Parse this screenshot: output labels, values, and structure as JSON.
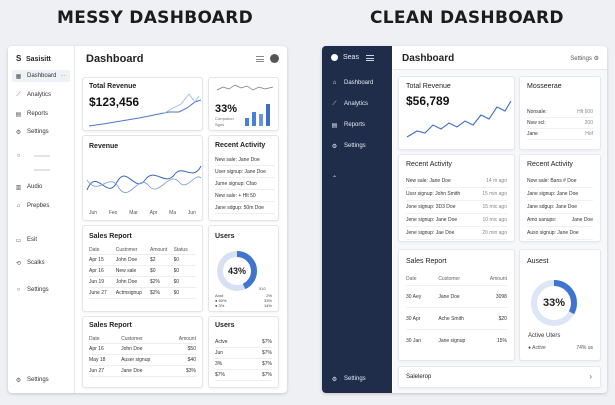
{
  "headings": {
    "messy": "MESSY DASHBOARD",
    "clean": "CLEAN DASHBOARD"
  },
  "messy": {
    "brand": "Sasisitt",
    "brand_letter": "S",
    "title": "Dashboard",
    "sidebar": {
      "items": [
        {
          "label": "Dashboard",
          "icon": "grid-icon"
        },
        {
          "label": "Analytics",
          "icon": "chart-icon"
        },
        {
          "label": "Reports",
          "icon": "doc-icon"
        },
        {
          "label": "Settings",
          "icon": "gear-icon"
        },
        {
          "label": "Audio",
          "icon": "audio-icon"
        },
        {
          "label": "Prepbes",
          "icon": "home-icon"
        },
        {
          "label": "Esit",
          "icon": "edit-icon"
        },
        {
          "label": "Scalks",
          "icon": "sync-icon"
        },
        {
          "label": "Settings",
          "icon": "gear-icon"
        },
        {
          "label": "Settings",
          "icon": "gear-icon"
        }
      ]
    },
    "total_revenue": {
      "title": "Total Revenue",
      "value": "$123,456"
    },
    "gauge": {
      "value": "33%",
      "caption_1": "Corrpution",
      "caption_2": "Sgos"
    },
    "revenue_chart": {
      "title": "Revenue",
      "months": [
        "Jun",
        "Feo",
        "Mar",
        "Apr",
        "Ma",
        "Jun"
      ]
    },
    "recent_activity": {
      "title": "Recent Activity",
      "items": [
        "New sale: Jane Doe",
        "User signup: Jane Doe",
        "Jume signup: Cfao",
        "New sale: + Hlt 50",
        "Jane sdgup: 50m Doe"
      ]
    },
    "sales_report": {
      "title": "Sales Report",
      "columns": [
        "Date",
        "Customer",
        "Amount",
        "Status"
      ],
      "rows": [
        [
          "Apr 15",
          "John Doe",
          "$2",
          "$0"
        ],
        [
          "Apr 16",
          "New sale",
          "$0",
          "$0"
        ],
        [
          "Jun 19",
          "John Doe",
          "$2%",
          "$0"
        ],
        [
          "June 27",
          "Actmsignup",
          "$2%",
          "$0"
        ]
      ]
    },
    "users_donut": {
      "title": "Users",
      "value": "43%",
      "legend": [
        [
          "Anot",
          "2%"
        ],
        [
          "60%",
          "33%"
        ],
        [
          "3%",
          "14%"
        ]
      ],
      "side_value": "510"
    },
    "sales_report_2": {
      "title": "Sales Report",
      "columns": [
        "Date",
        "Customer",
        "Amount"
      ],
      "rows": [
        [
          "Apr 16",
          "John Doe",
          "$50"
        ],
        [
          "May 18",
          "Auser signup",
          "$40"
        ],
        [
          "Jun 27",
          "Jane Doe",
          "$3%"
        ]
      ]
    },
    "users_list": {
      "title": "Users",
      "rows": [
        [
          "Actve",
          "$7%"
        ],
        [
          "Jun",
          "$7%"
        ],
        [
          "3%",
          "$7%"
        ],
        [
          "$7%",
          "$7%"
        ]
      ]
    }
  },
  "clean": {
    "brand": "Seas",
    "title": "Dashboard",
    "settings_link": "Settings",
    "sidebar": {
      "items": [
        {
          "label": "Dashboard",
          "icon": "home-icon"
        },
        {
          "label": "Analytics",
          "icon": "chart-icon"
        },
        {
          "label": "Reports",
          "icon": "doc-icon"
        },
        {
          "label": "Settings",
          "icon": "gear-icon"
        },
        {
          "label": "",
          "icon": "chevron-up-icon"
        },
        {
          "label": "Settings",
          "icon": "gear-icon"
        }
      ]
    },
    "total_revenue": {
      "title": "Total Revenue",
      "value": "$56,789"
    },
    "messages": {
      "title": "Mosseerae",
      "rows": [
        [
          "Nonsale: ",
          "Hlt 600"
        ],
        [
          "Nsw scl: ",
          "200"
        ],
        [
          "Jane ",
          "Hof"
        ]
      ]
    },
    "recent_activity": {
      "title": "Recent Activity",
      "items": [
        [
          "New sale: Jane Doe",
          "14 m ago"
        ],
        [
          "Ussr signup: John Smith",
          "15 min ago"
        ],
        [
          "Jone signup: 3D3 Doe",
          "15 mic ago"
        ],
        [
          "Jene signup: Jane Doe",
          "10 mic ago"
        ],
        [
          "Jene signup: Jae Doe",
          "20 min ago"
        ]
      ]
    },
    "recent_activity_2": {
      "title": "Recent Activity",
      "items": [
        [
          "Now sale: Bans # Doe",
          ""
        ],
        [
          "Jane signup: Jane Doe",
          ""
        ],
        [
          "Jane sdgup: Jane Doe",
          ""
        ],
        [
          "Amo sanups:",
          "Jane Doe"
        ],
        [
          "Auso signup: Jane Doe",
          ""
        ]
      ]
    },
    "sales_report": {
      "title": "Sales Report",
      "columns": [
        "Date",
        "Customer",
        "Amount"
      ],
      "rows": [
        [
          "30 Aey",
          "Jane Doe",
          "3098"
        ],
        [
          "30 Apr",
          "Ache Smith",
          "$20"
        ],
        [
          "30 Jan",
          "Jane signup",
          "15%"
        ]
      ]
    },
    "donut": {
      "title": "Ausest",
      "value": "33%",
      "caption": "Active Uters",
      "legend_label": "Active",
      "legend_value": "74% us"
    },
    "footer_card": {
      "label": "Salelerop",
      "icon": "chevron-right-icon"
    }
  }
}
